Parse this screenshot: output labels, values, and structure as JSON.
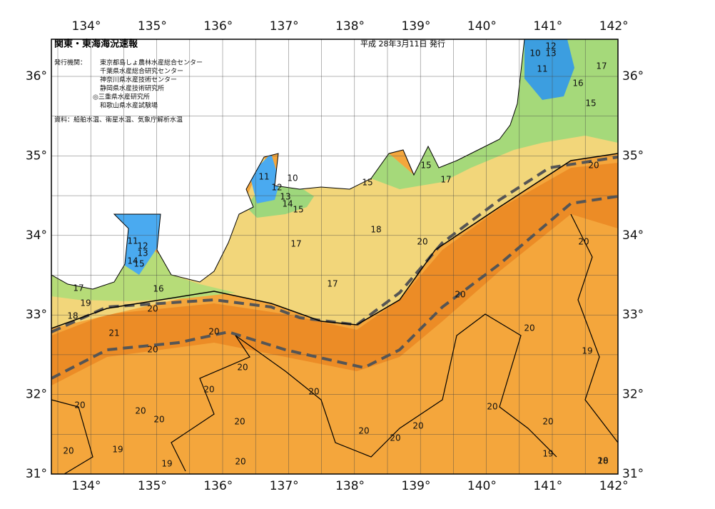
{
  "header": {
    "title": "関東・東海海況速報",
    "date": "平成 28年3月11日 発行",
    "issuers_label": "発行機関：",
    "issuers": [
      "東京都島しょ農林水産総合センター",
      "千葉県水産総合研究センター",
      "神奈川県水産技術センター",
      "静岡県水産技術研究所",
      "◎三重県水産研究所",
      "和歌山県水産試験場"
    ],
    "source": "資料：船舶水温、衛星水温、気象庁解析水温"
  },
  "map": {
    "longitude_labels": [
      "134°",
      "135°",
      "136°",
      "137°",
      "138°",
      "139°",
      "140°",
      "141°",
      "142°"
    ],
    "latitude_labels": [
      "36°",
      "35°",
      "34°",
      "33°",
      "32°",
      "31°"
    ],
    "contour_labels": [
      "12",
      "10",
      "13",
      "11",
      "17",
      "16",
      "15",
      "20",
      "15",
      "17",
      "11",
      "10",
      "12",
      "13",
      "14",
      "15",
      "15",
      "18",
      "20",
      "20",
      "17",
      "11",
      "12",
      "13",
      "14",
      "15",
      "17",
      "16",
      "19",
      "17",
      "20",
      "20",
      "18",
      "21",
      "20",
      "20",
      "20",
      "19",
      "20",
      "20",
      "20",
      "20",
      "20",
      "20",
      "20",
      "20",
      "20",
      "20",
      "20",
      "20",
      "19",
      "20",
      "19",
      "19",
      "20",
      "20",
      "18"
    ]
  }
}
